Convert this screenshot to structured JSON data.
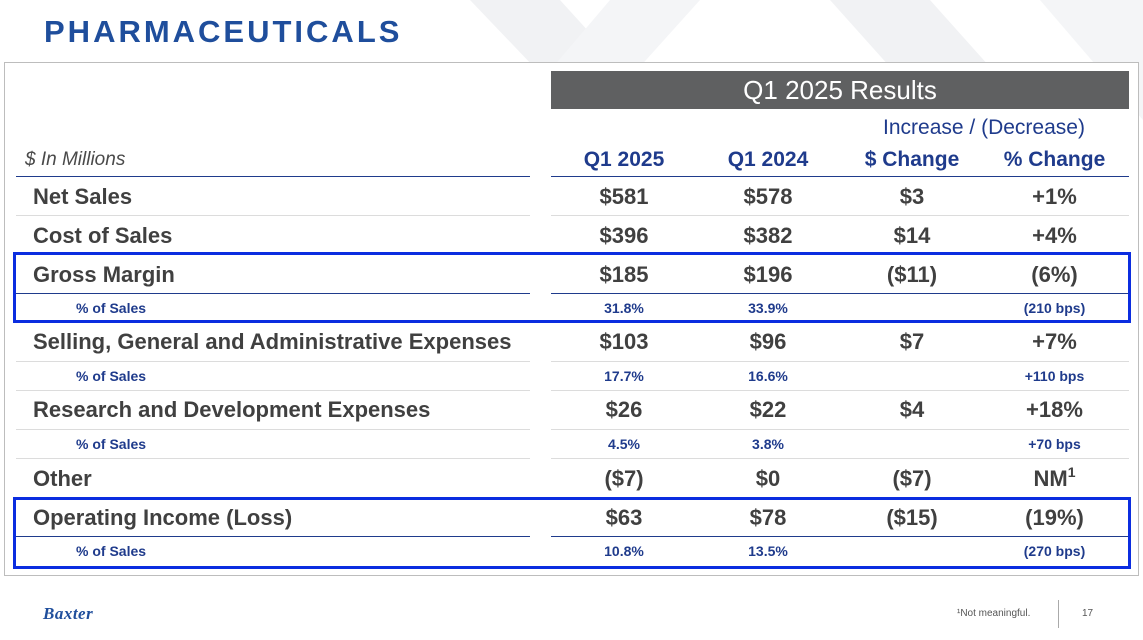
{
  "page_title": "PHARMACEUTICALS",
  "results_header": "Q1 2025 Results",
  "increase_decrease_label": "Increase / (Decrease)",
  "units_label": "$ In Millions",
  "columns": [
    "Q1 2025",
    "Q1 2024",
    "$ Change",
    "% Change"
  ],
  "rows": [
    {
      "label": "Net Sales",
      "q1_2025": "$581",
      "q1_2024": "$578",
      "dollar_change": "$3",
      "pct_change": "+1%"
    },
    {
      "label": "Cost of Sales",
      "q1_2025": "$396",
      "q1_2024": "$382",
      "dollar_change": "$14",
      "pct_change": "+4%"
    },
    {
      "label": "Gross Margin",
      "q1_2025": "$185",
      "q1_2024": "$196",
      "dollar_change": "($11)",
      "pct_change": "(6%)"
    },
    {
      "label": "% of Sales",
      "q1_2025": "31.8%",
      "q1_2024": "33.9%",
      "dollar_change": "",
      "pct_change": "(210 bps)"
    },
    {
      "label": "Selling, General and Administrative Expenses",
      "q1_2025": "$103",
      "q1_2024": "$96",
      "dollar_change": "$7",
      "pct_change": "+7%"
    },
    {
      "label": "% of Sales",
      "q1_2025": "17.7%",
      "q1_2024": "16.6%",
      "dollar_change": "",
      "pct_change": "+110 bps"
    },
    {
      "label": "Research and Development Expenses",
      "q1_2025": "$26",
      "q1_2024": "$22",
      "dollar_change": "$4",
      "pct_change": "+18%"
    },
    {
      "label": "% of Sales",
      "q1_2025": "4.5%",
      "q1_2024": "3.8%",
      "dollar_change": "",
      "pct_change": "+70 bps"
    },
    {
      "label": "Other",
      "q1_2025": "($7)",
      "q1_2024": "$0",
      "dollar_change": "($7)",
      "pct_change": "NM",
      "pct_change_sup": "1"
    },
    {
      "label": "Operating Income (Loss)",
      "q1_2025": "$63",
      "q1_2024": "$78",
      "dollar_change": "($15)",
      "pct_change": "(19%)"
    },
    {
      "label": "% of Sales",
      "q1_2025": "10.8%",
      "q1_2024": "13.5%",
      "dollar_change": "",
      "pct_change": "(270 bps)"
    }
  ],
  "footer": {
    "logo": "Baxter",
    "footnote": "¹Not meaningful.",
    "page_number": "17"
  },
  "colors": {
    "title_blue": "#1f4e9c",
    "header_gray": "#5f6061",
    "highlight_blue": "#0b2de0",
    "label_navy": "#1f3b8c"
  }
}
